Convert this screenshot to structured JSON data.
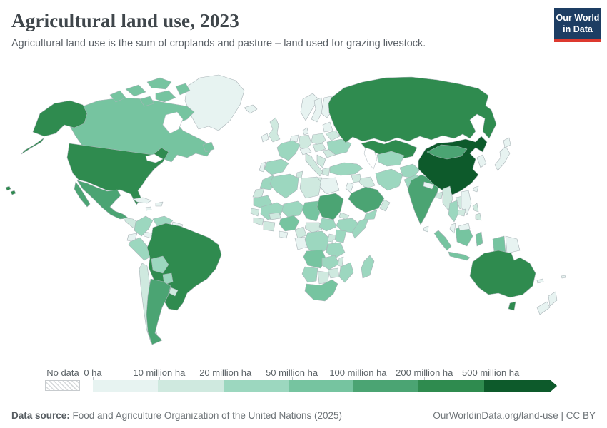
{
  "header": {
    "title": "Agricultural land use, 2023",
    "subtitle": "Agricultural land use is the sum of croplands and pasture – land used for grazing livestock.",
    "logo_line1": "Our World",
    "logo_line2": "in Data",
    "logo_colors": {
      "background": "#1d3d63",
      "stripe": "#dd392f",
      "text": "#ffffff"
    }
  },
  "legend": {
    "no_data_label": "No data"
  },
  "footer": {
    "source_label": "Data source:",
    "source_text": " Food and Agriculture Organization of the United Nations (2025)",
    "attribution": "OurWorldinData.org/land-use | CC BY"
  },
  "chart_data": {
    "type": "heatmap",
    "variant": "choropleth-world-map",
    "title": "Agricultural land use, 2023",
    "unit": "hectares of agricultural land",
    "legend_position": "bottom",
    "legend_tick_labels": [
      "0 ha",
      "10 million ha",
      "20 million ha",
      "50 million ha",
      "100 million ha",
      "200 million ha",
      "500 million ha"
    ],
    "bin_ranges": [
      "0–10 million ha",
      "10–20 million ha",
      "20–50 million ha",
      "50–100 million ha",
      "100–200 million ha",
      "200–500 million ha",
      "500+ million ha"
    ],
    "bin_colors": [
      "#e7f3f1",
      "#cfe9df",
      "#9cd7bf",
      "#76c4a0",
      "#4ba473",
      "#2f8b4f",
      "#0d5a2b"
    ],
    "no_data_style": "white-with-gray-diagonal-hatch",
    "country_bins": {
      "greenland": 0,
      "canada": 3,
      "united-states": 5,
      "mexico": 4,
      "central-america": 1,
      "costa-rica-panama": 0,
      "cuba": 0,
      "hispaniola": 0,
      "jamaica": 0,
      "colombia": 2,
      "venezuela": 2,
      "guyanas": 0,
      "ecuador": 0,
      "peru": 2,
      "brazil": 5,
      "bolivia": 2,
      "paraguay": 2,
      "chile": 1,
      "argentina": 4,
      "uruguay": 1,
      "iceland": 0,
      "ireland": 0,
      "united-kingdom": 1,
      "norway": 0,
      "sweden": 0,
      "finland": 0,
      "denmark": 0,
      "baltics": 0,
      "belarus": 1,
      "poland": 1,
      "germany": 1,
      "benelux": 0,
      "france": 2,
      "spain": 2,
      "portugal": 0,
      "italy": 1,
      "alpine-states": 0,
      "central-europe": 1,
      "romania": 1,
      "balkans": 1,
      "greece": 1,
      "ukraine": 2,
      "morocco": 2,
      "western-sahara": 1,
      "algeria": 2,
      "tunisia": 1,
      "libya": 1,
      "egypt": 0,
      "mauritania": 2,
      "mali": 2,
      "niger": 2,
      "chad": 3,
      "sudan": 4,
      "eritrea": 1,
      "ethiopia": 2,
      "somalia": 2,
      "senegal": 1,
      "guinea": 1,
      "ivory-coast-ghana": 1,
      "burkina-faso": 1,
      "nigeria": 3,
      "cameroon": 1,
      "central-african-republic": 1,
      "south-sudan": 2,
      "gulf-of-guinea-states": 0,
      "gabon-congo": 0,
      "drc": 2,
      "uganda": 1,
      "kenya": 2,
      "tanzania": 2,
      "angola": 3,
      "zambia": 2,
      "malawi": 1,
      "mozambique": 2,
      "zimbabwe": 1,
      "namibia": 2,
      "botswana": 1,
      "south-africa": 3,
      "madagascar": 2,
      "russia": 5,
      "kazakhstan": 5,
      "turkey": 2,
      "syria": 1,
      "iraq": 1,
      "jordan-israel": 0,
      "saudi-arabia": 4,
      "yemen": 2,
      "oman": 1,
      "iran": 2,
      "turkmenistan-uzbekistan": 2,
      "afghanistan": 2,
      "pakistan": 2,
      "india": 4,
      "sri-lanka": 0,
      "nepal": 0,
      "bangladesh": 1,
      "myanmar": 1,
      "thailand": 2,
      "laos": 1,
      "vietnam": 0,
      "cambodia": 1,
      "malaysia": 0,
      "east-malaysia": 0,
      "china": 6,
      "mongolia": 4,
      "korea": 0,
      "japan": 0,
      "taiwan": 0,
      "philippines": 1,
      "indonesia": 3,
      "papua-new-guinea": 0,
      "new-caledonia": 0,
      "fiji": 0,
      "australia": 5,
      "new-zealand": 0
    }
  }
}
